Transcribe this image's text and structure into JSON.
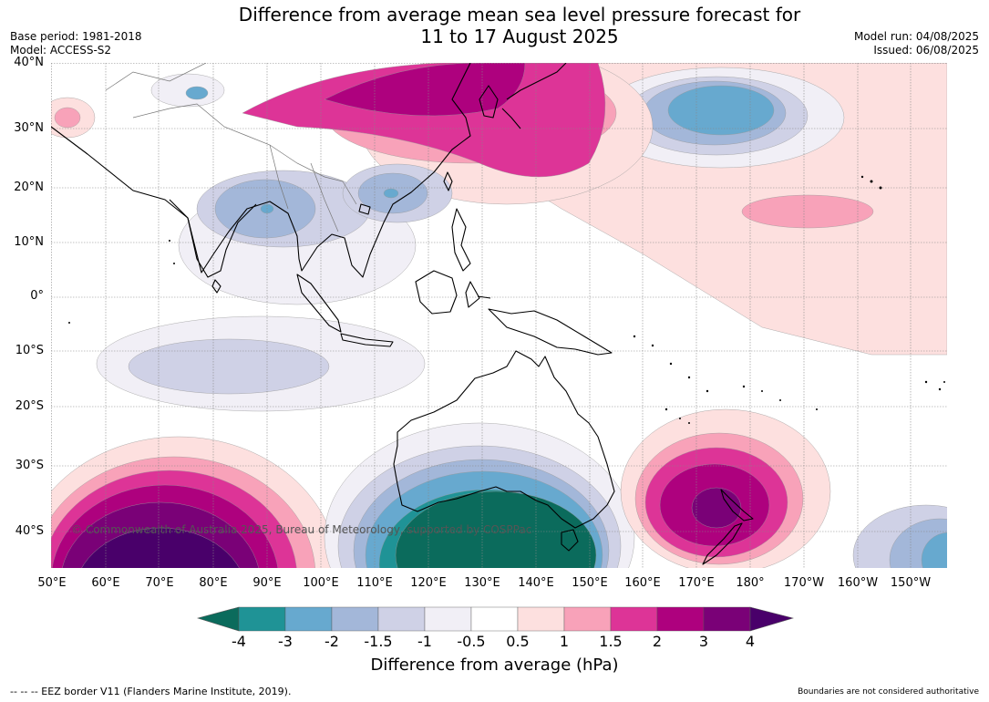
{
  "title_line1": "Difference from average mean sea level pressure forecast for",
  "title_line2": "11 to 17 August 2025",
  "meta_left": {
    "base_period": "Base period: 1981-2018",
    "model": "Model: ACCESS-S2"
  },
  "meta_right": {
    "model_run": "Model run: 04/08/2025",
    "issued": "Issued: 06/08/2025"
  },
  "lat_labels": [
    "40°N",
    "30°N",
    "20°N",
    "10°N",
    "0°",
    "10°S",
    "20°S",
    "30°S",
    "40°S"
  ],
  "lon_labels": [
    "50°E",
    "60°E",
    "70°E",
    "80°E",
    "90°E",
    "100°E",
    "110°E",
    "120°E",
    "130°E",
    "140°E",
    "150°E",
    "160°E",
    "170°E",
    "180°",
    "170°W",
    "160°W",
    "150°W"
  ],
  "copyright": "© Commonwealth of Australia 2025, Bureau of Meteorology, supported by COSPPac",
  "colorbar": {
    "ticks": [
      "-4",
      "-3",
      "-2",
      "-1.5",
      "-1",
      "-0.5",
      "0.5",
      "1",
      "1.5",
      "2",
      "3",
      "4"
    ],
    "colors": [
      "#0b6b5c",
      "#1f9396",
      "#67a9cf",
      "#a3b7d9",
      "#cfd1e6",
      "#f1eff6",
      "#ffffff",
      "#fde0df",
      "#f8a2b9",
      "#dd3497",
      "#ae017e",
      "#7a0177",
      "#49006a"
    ],
    "label": "Difference from average (hPa)"
  },
  "footer_left": "--  --  -- EEZ border V11 (Flanders Marine Institute, 2019).",
  "footer_right": "Boundaries are not considered authoritative"
}
